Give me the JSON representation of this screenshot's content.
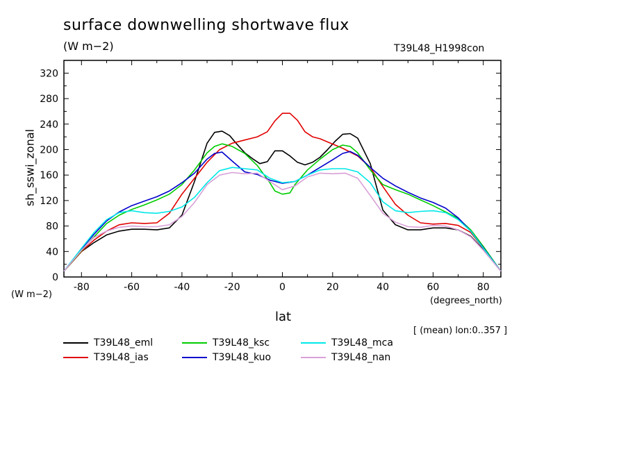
{
  "chart_data": {
    "type": "line",
    "title": "surface downwelling shortwave flux",
    "units": "(W m−2)",
    "run_label": "T39L48_H1998con",
    "ylabel": "sh_sswi_zonal",
    "y_units": "(W m−2)",
    "xlabel": "lat",
    "x_units": "(degrees_north)",
    "note": "[ (mean) lon:0..357 ]",
    "xlim": [
      -87,
      87
    ],
    "ylim": [
      0,
      340
    ],
    "x_ticks": [
      -80,
      -60,
      -40,
      -20,
      0,
      20,
      40,
      60,
      80
    ],
    "x_tick_labels": [
      "-80",
      "-60",
      "-40",
      "-20",
      "0",
      "20",
      "40",
      "60",
      "80"
    ],
    "y_ticks": [
      0,
      40,
      80,
      120,
      160,
      200,
      240,
      280,
      320
    ],
    "y_tick_labels": [
      "0",
      "40",
      "80",
      "120",
      "160",
      "200",
      "240",
      "280",
      "320"
    ],
    "series": [
      {
        "name": "T39L48_eml",
        "color": "#000000",
        "x": [
          -87,
          -80,
          -75,
          -70,
          -65,
          -60,
          -55,
          -50,
          -45,
          -40,
          -35,
          -30,
          -27,
          -24,
          -21,
          -18,
          -15,
          -12,
          -9,
          -6,
          -3,
          0,
          3,
          6,
          9,
          12,
          15,
          18,
          21,
          24,
          27,
          30,
          35,
          40,
          45,
          50,
          55,
          60,
          65,
          70,
          75,
          80,
          87
        ],
        "y": [
          9,
          40,
          54,
          66,
          72,
          75,
          75,
          74,
          77,
          97,
          150,
          210,
          227,
          229,
          222,
          208,
          195,
          186,
          178,
          181,
          198,
          198,
          190,
          180,
          176,
          180,
          188,
          200,
          213,
          224,
          225,
          218,
          178,
          105,
          82,
          74,
          74,
          77,
          77,
          74,
          64,
          43,
          9
        ]
      },
      {
        "name": "T39L48_ias",
        "color": "#e00000",
        "x": [
          -87,
          -80,
          -75,
          -70,
          -65,
          -60,
          -55,
          -50,
          -45,
          -40,
          -35,
          -30,
          -25,
          -20,
          -15,
          -10,
          -6,
          -3,
          0,
          3,
          6,
          9,
          12,
          15,
          18,
          21,
          24,
          27,
          30,
          35,
          40,
          45,
          50,
          55,
          60,
          65,
          70,
          75,
          80,
          87
        ],
        "y": [
          9,
          40,
          58,
          72,
          82,
          85,
          84,
          85,
          100,
          130,
          155,
          180,
          200,
          210,
          215,
          220,
          228,
          245,
          257,
          257,
          246,
          228,
          220,
          217,
          212,
          207,
          202,
          196,
          190,
          172,
          142,
          114,
          97,
          85,
          83,
          84,
          81,
          70,
          45,
          9
        ]
      },
      {
        "name": "T39L48_ksc",
        "color": "#00cc00",
        "x": [
          -87,
          -80,
          -75,
          -70,
          -65,
          -60,
          -55,
          -50,
          -45,
          -40,
          -35,
          -30,
          -27,
          -24,
          -20,
          -15,
          -10,
          -5,
          -3,
          0,
          3,
          5,
          10,
          15,
          20,
          24,
          27,
          30,
          35,
          40,
          45,
          50,
          55,
          60,
          65,
          70,
          75,
          80,
          87
        ],
        "y": [
          9,
          41,
          63,
          84,
          97,
          106,
          113,
          121,
          130,
          145,
          168,
          195,
          205,
          209,
          205,
          194,
          175,
          148,
          135,
          130,
          132,
          145,
          168,
          185,
          200,
          207,
          205,
          195,
          168,
          145,
          137,
          130,
          121,
          112,
          102,
          92,
          74,
          48,
          9
        ]
      },
      {
        "name": "T39L48_kuo",
        "color": "#0000cc",
        "x": [
          -87,
          -80,
          -75,
          -70,
          -65,
          -60,
          -55,
          -50,
          -45,
          -40,
          -35,
          -30,
          -27,
          -24,
          -20,
          -15,
          -10,
          -5,
          0,
          5,
          10,
          15,
          20,
          24,
          27,
          30,
          35,
          40,
          45,
          50,
          55,
          60,
          65,
          70,
          75,
          80,
          87
        ],
        "y": [
          9,
          44,
          67,
          88,
          102,
          112,
          119,
          126,
          135,
          148,
          163,
          185,
          194,
          196,
          182,
          165,
          161,
          152,
          147,
          150,
          160,
          172,
          184,
          194,
          197,
          191,
          172,
          155,
          143,
          133,
          124,
          117,
          108,
          93,
          72,
          46,
          9
        ]
      },
      {
        "name": "T39L48_mca",
        "color": "#00e8e8",
        "x": [
          -87,
          -80,
          -75,
          -70,
          -65,
          -60,
          -55,
          -50,
          -45,
          -40,
          -35,
          -30,
          -25,
          -20,
          -15,
          -10,
          -5,
          0,
          5,
          10,
          15,
          20,
          25,
          30,
          35,
          40,
          45,
          50,
          55,
          60,
          65,
          70,
          75,
          80,
          87
        ],
        "y": [
          9,
          45,
          70,
          90,
          101,
          104,
          101,
          100,
          103,
          110,
          125,
          148,
          167,
          172,
          170,
          168,
          155,
          148,
          150,
          160,
          168,
          170,
          170,
          165,
          148,
          118,
          104,
          101,
          103,
          104,
          101,
          90,
          72,
          45,
          9
        ]
      },
      {
        "name": "T39L48_nan",
        "color": "#d8a0d8",
        "x": [
          -87,
          -80,
          -75,
          -70,
          -65,
          -60,
          -55,
          -50,
          -45,
          -40,
          -35,
          -30,
          -25,
          -20,
          -15,
          -10,
          -5,
          0,
          5,
          10,
          15,
          20,
          25,
          30,
          35,
          40,
          45,
          50,
          55,
          60,
          65,
          70,
          75,
          80,
          87
        ],
        "y": [
          9,
          42,
          62,
          72,
          78,
          80,
          79,
          79,
          82,
          95,
          117,
          145,
          160,
          164,
          162,
          163,
          150,
          137,
          143,
          157,
          163,
          162,
          163,
          155,
          128,
          100,
          86,
          79,
          78,
          81,
          80,
          74,
          63,
          42,
          9
        ]
      }
    ]
  }
}
